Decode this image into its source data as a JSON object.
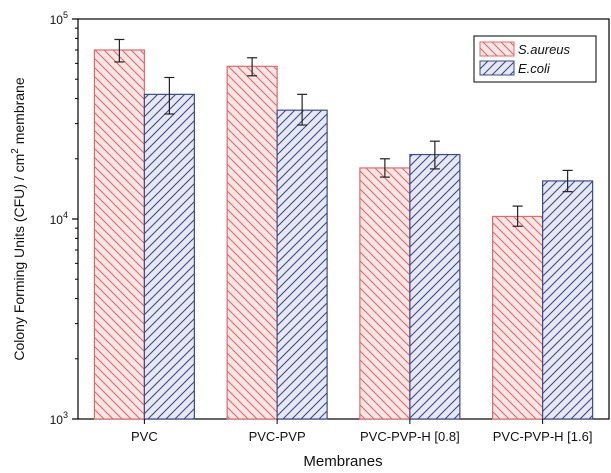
{
  "chart_data": {
    "type": "bar",
    "title": "",
    "xlabel": "Membranes",
    "ylabel_main": "Colony Forming Units (CFU) / cm",
    "ylabel_sup": "2",
    "ylabel_tail": " membrane",
    "yscale": "log",
    "ylim": [
      1000,
      100000
    ],
    "y_ticks": [
      {
        "value": 1000,
        "base": "10",
        "exp": "3"
      },
      {
        "value": 10000,
        "base": "10",
        "exp": "4"
      },
      {
        "value": 100000,
        "base": "10",
        "exp": "5"
      }
    ],
    "categories": [
      "PVC",
      "PVC-PVP",
      "PVC-PVP-H [0.8]",
      "PVC-PVP-H [1.6]"
    ],
    "series": [
      {
        "name": "S.aureus",
        "color": "#e06a6a",
        "fill": "#fbe6e6",
        "hatch": "back",
        "values": [
          70000,
          58000,
          18000,
          10300
        ],
        "err_high": [
          79000,
          64000,
          20000,
          11600
        ],
        "err_low": [
          61000,
          52000,
          16200,
          9200
        ]
      },
      {
        "name": "E.coli",
        "color": "#3f4a8a",
        "fill": "#e6e8f4",
        "hatch": "fwd",
        "values": [
          42000,
          35000,
          21000,
          15500
        ],
        "err_high": [
          51000,
          42000,
          24500,
          17500
        ],
        "err_low": [
          33500,
          29500,
          17800,
          13700
        ]
      }
    ],
    "legend_position": "top-right",
    "grid": false
  }
}
